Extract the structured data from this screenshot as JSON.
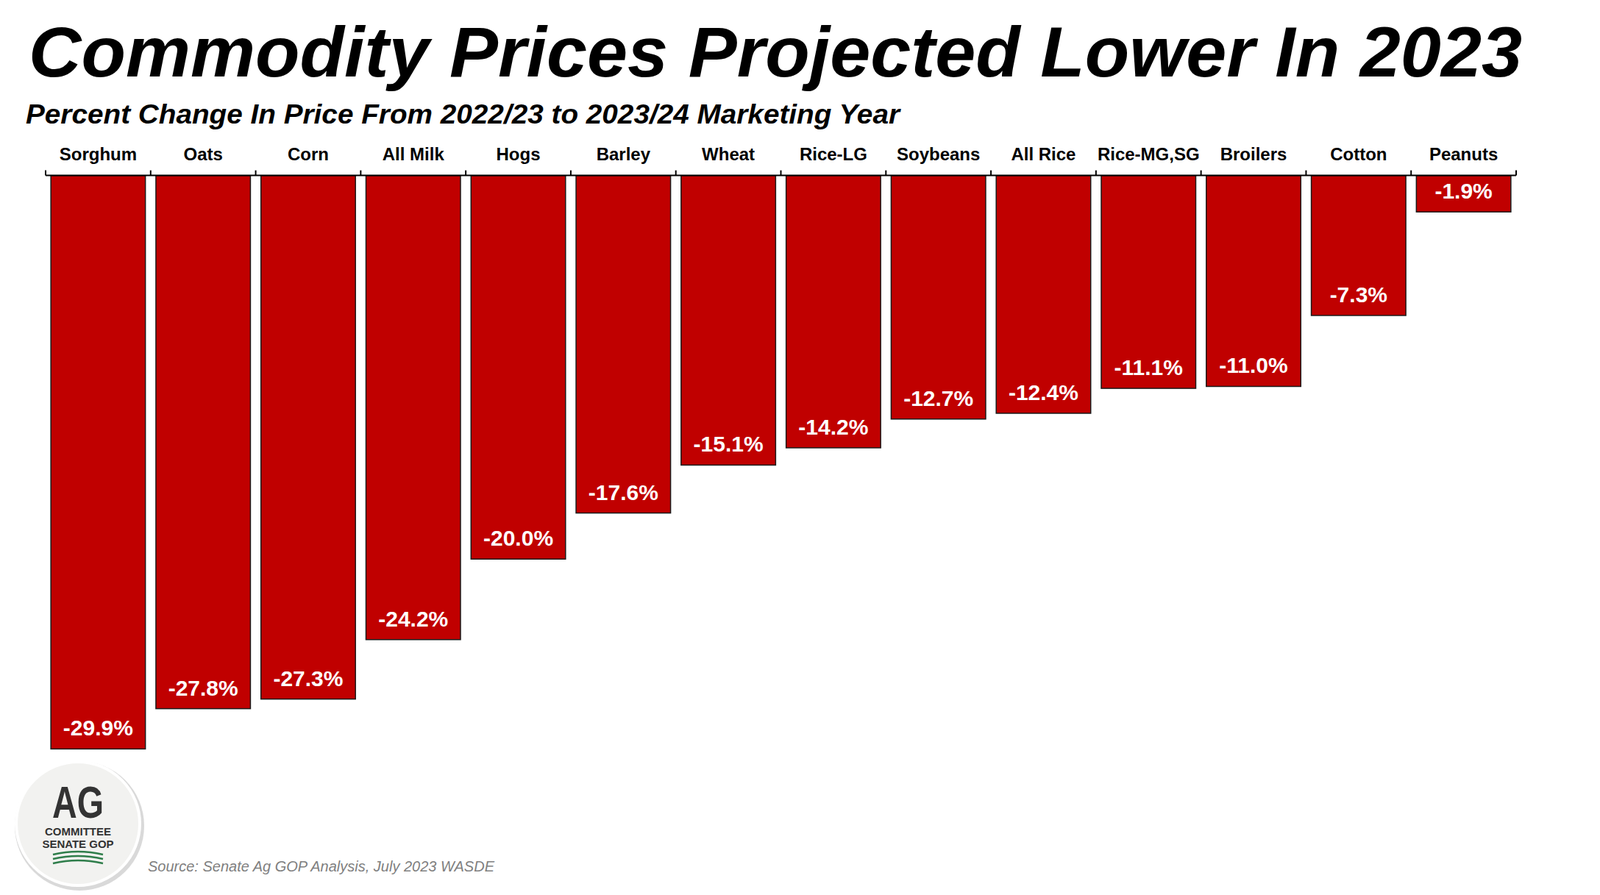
{
  "chart_data": {
    "type": "bar",
    "title": "Commodity Prices Projected Lower In 2023",
    "subtitle": "Percent Change In Price From 2022/23 to 2023/24 Marketing Year",
    "categories": [
      "Sorghum",
      "Oats",
      "Corn",
      "All Milk",
      "Hogs",
      "Barley",
      "Wheat",
      "Rice-LG",
      "Soybeans",
      "All Rice",
      "Rice-MG,SG",
      "Broilers",
      "Cotton",
      "Peanuts"
    ],
    "values": [
      -29.9,
      -27.8,
      -27.3,
      -24.2,
      -20.0,
      -17.6,
      -15.1,
      -14.2,
      -12.7,
      -12.4,
      -11.1,
      -11.0,
      -7.3,
      -1.9
    ],
    "value_labels": [
      "-29.9%",
      "-27.8%",
      "-27.3%",
      "-24.2%",
      "-20.0%",
      "-17.6%",
      "-15.1%",
      "-14.2%",
      "-12.7%",
      "-12.4%",
      "-11.1%",
      "-11.0%",
      "-7.3%",
      "-1.9%"
    ],
    "color": "#c00000",
    "ylim": [
      -30,
      0
    ],
    "grid": false,
    "data_labels": true,
    "tick_labels": "x",
    "source": "Source: Senate Ag GOP Analysis, July 2023 WASDE",
    "logo_text": [
      "AG",
      "COMMITTEE",
      "SENATE GOP"
    ]
  }
}
